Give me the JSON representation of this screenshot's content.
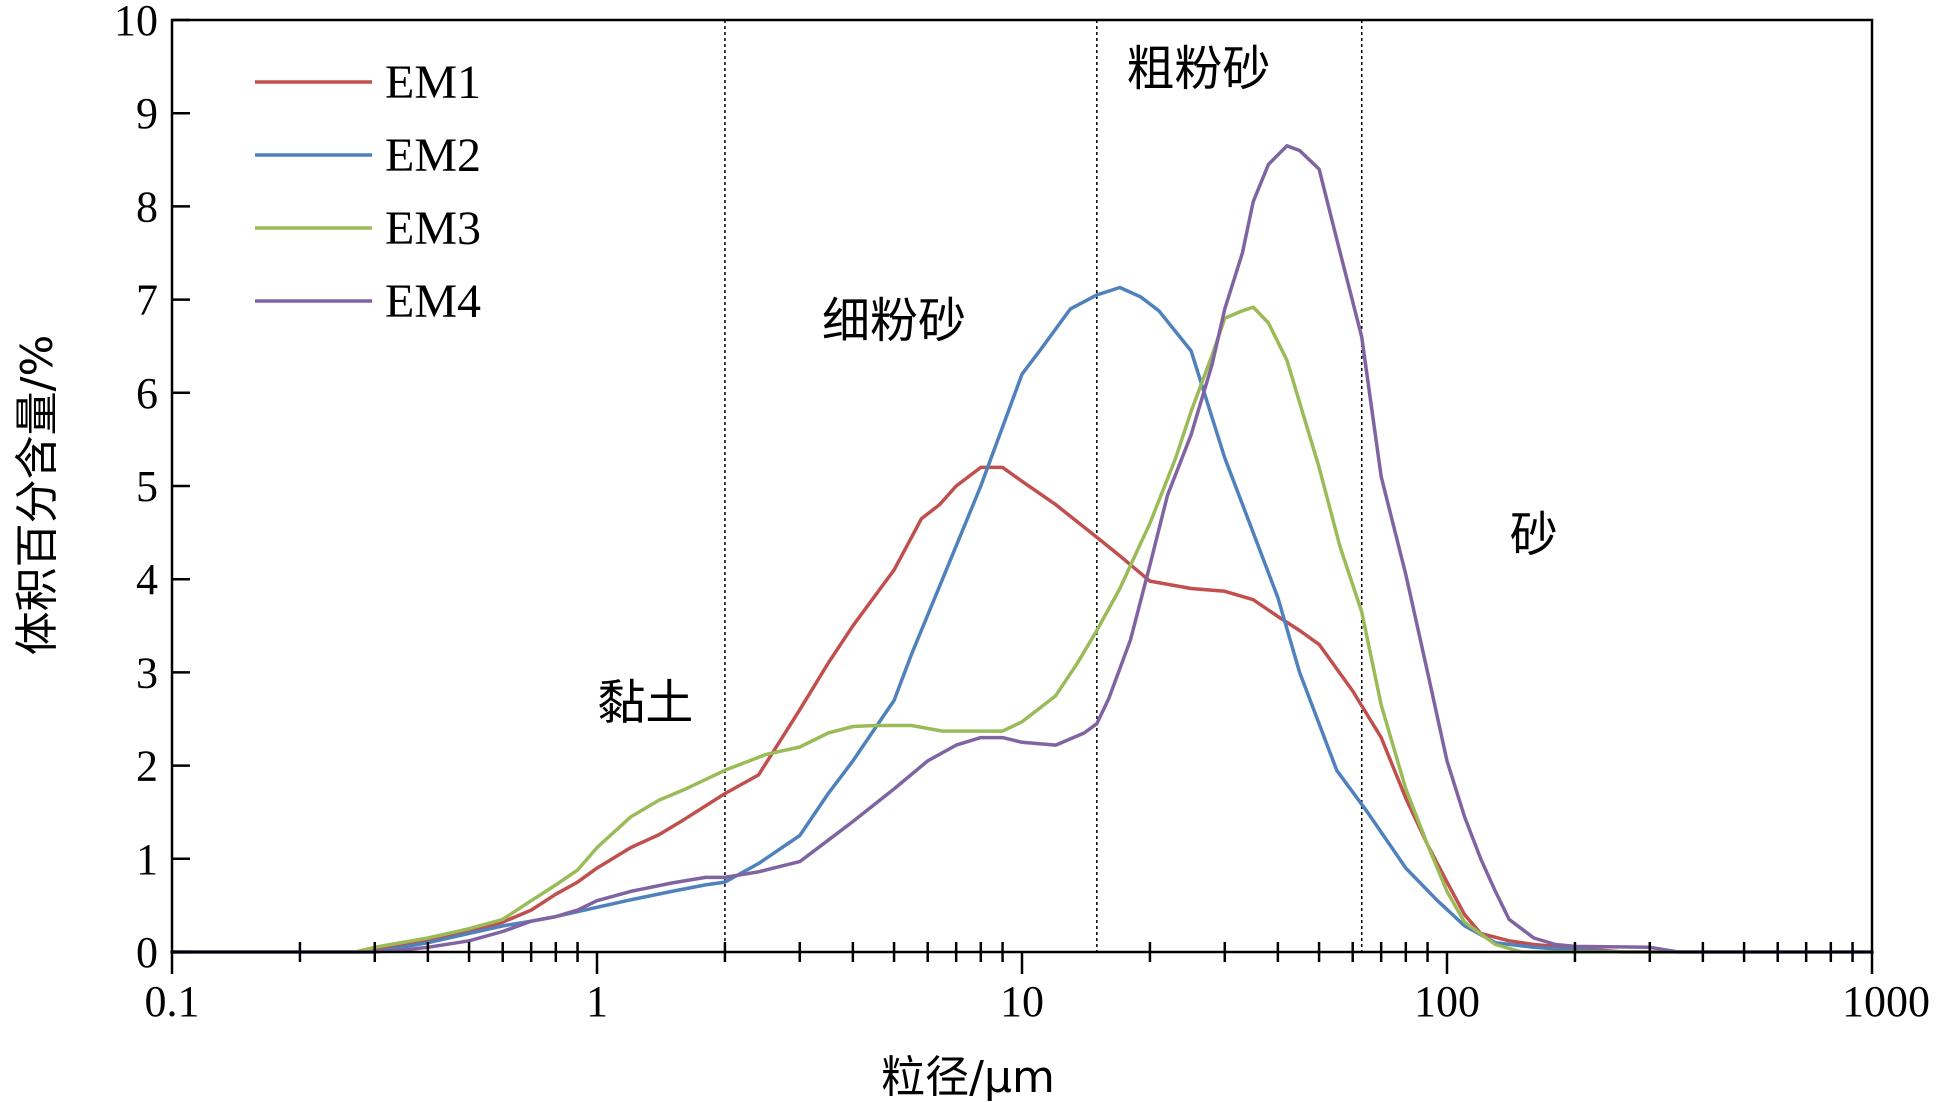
{
  "chart_data": {
    "type": "line",
    "xlabel": "粒径/μm",
    "ylabel": "体积百分含量/%",
    "xscale": "log",
    "xlim": [
      0.1,
      1000
    ],
    "ylim": [
      0,
      10
    ],
    "grid": false,
    "legend_position": "top-left",
    "x_tick_labels": [
      "0.1",
      "1",
      "10",
      "100",
      "1000"
    ],
    "y_tick_labels": [
      "0",
      "1",
      "2",
      "3",
      "4",
      "5",
      "6",
      "7",
      "8",
      "9",
      "10"
    ],
    "boundaries": [
      2,
      15,
      63
    ],
    "annotations": [
      {
        "text": "黏土",
        "x": 1.3,
        "y": 2.5
      },
      {
        "text": "细粉砂",
        "x": 5.0,
        "y": 6.6
      },
      {
        "text": "粗粉砂",
        "x": 26,
        "y": 9.3
      },
      {
        "text": "砂",
        "x": 160,
        "y": 4.3
      }
    ],
    "series": [
      {
        "name": "EM1",
        "color": "#c0504d",
        "points": [
          [
            0.1,
            0
          ],
          [
            0.28,
            0
          ],
          [
            0.3,
            0.03
          ],
          [
            0.4,
            0.12
          ],
          [
            0.5,
            0.22
          ],
          [
            0.6,
            0.32
          ],
          [
            0.7,
            0.45
          ],
          [
            0.8,
            0.62
          ],
          [
            0.9,
            0.75
          ],
          [
            1.0,
            0.9
          ],
          [
            1.2,
            1.12
          ],
          [
            1.4,
            1.26
          ],
          [
            1.6,
            1.42
          ],
          [
            2.0,
            1.7
          ],
          [
            2.4,
            1.9
          ],
          [
            3.0,
            2.6
          ],
          [
            3.5,
            3.1
          ],
          [
            4.0,
            3.5
          ],
          [
            5.0,
            4.1
          ],
          [
            5.8,
            4.65
          ],
          [
            6.4,
            4.8
          ],
          [
            7.0,
            5.0
          ],
          [
            8.0,
            5.2
          ],
          [
            9.0,
            5.2
          ],
          [
            10.0,
            5.05
          ],
          [
            12.0,
            4.8
          ],
          [
            15.0,
            4.45
          ],
          [
            17.0,
            4.25
          ],
          [
            20.0,
            3.98
          ],
          [
            25.0,
            3.9
          ],
          [
            30.0,
            3.87
          ],
          [
            35.0,
            3.78
          ],
          [
            40.0,
            3.6
          ],
          [
            45.0,
            3.45
          ],
          [
            50.0,
            3.3
          ],
          [
            60.0,
            2.8
          ],
          [
            70.0,
            2.3
          ],
          [
            80.0,
            1.65
          ],
          [
            90.0,
            1.15
          ],
          [
            100.0,
            0.75
          ],
          [
            110.0,
            0.4
          ],
          [
            120.0,
            0.2
          ],
          [
            140.0,
            0.12
          ],
          [
            160.0,
            0.08
          ],
          [
            200.0,
            0.04
          ],
          [
            260.0,
            0.0
          ],
          [
            1000,
            0
          ]
        ]
      },
      {
        "name": "EM2",
        "color": "#4f81bd",
        "points": [
          [
            0.1,
            0
          ],
          [
            0.3,
            0
          ],
          [
            0.4,
            0.1
          ],
          [
            0.5,
            0.2
          ],
          [
            0.6,
            0.28
          ],
          [
            0.7,
            0.33
          ],
          [
            0.8,
            0.38
          ],
          [
            1.0,
            0.48
          ],
          [
            1.2,
            0.56
          ],
          [
            1.5,
            0.65
          ],
          [
            1.8,
            0.72
          ],
          [
            2.0,
            0.75
          ],
          [
            2.4,
            0.95
          ],
          [
            3.0,
            1.25
          ],
          [
            3.5,
            1.7
          ],
          [
            4.0,
            2.05
          ],
          [
            5.0,
            2.7
          ],
          [
            5.5,
            3.2
          ],
          [
            6.5,
            4.0
          ],
          [
            8.0,
            5.0
          ],
          [
            10.0,
            6.2
          ],
          [
            11.0,
            6.45
          ],
          [
            13.0,
            6.9
          ],
          [
            15.0,
            7.05
          ],
          [
            17.0,
            7.13
          ],
          [
            19.0,
            7.03
          ],
          [
            21.0,
            6.88
          ],
          [
            25.0,
            6.45
          ],
          [
            30.0,
            5.3
          ],
          [
            35.0,
            4.5
          ],
          [
            40.0,
            3.8
          ],
          [
            45.0,
            3.0
          ],
          [
            50.0,
            2.45
          ],
          [
            55.0,
            1.95
          ],
          [
            65.0,
            1.5
          ],
          [
            80.0,
            0.9
          ],
          [
            95.0,
            0.55
          ],
          [
            110.0,
            0.28
          ],
          [
            130.0,
            0.1
          ],
          [
            160.0,
            0.05
          ],
          [
            200.0,
            0.02
          ],
          [
            260.0,
            0.0
          ],
          [
            1000,
            0
          ]
        ]
      },
      {
        "name": "EM3",
        "color": "#9bbb59",
        "points": [
          [
            0.1,
            0
          ],
          [
            0.27,
            0
          ],
          [
            0.3,
            0.05
          ],
          [
            0.4,
            0.15
          ],
          [
            0.5,
            0.25
          ],
          [
            0.6,
            0.35
          ],
          [
            0.7,
            0.55
          ],
          [
            0.8,
            0.72
          ],
          [
            0.9,
            0.88
          ],
          [
            1.0,
            1.12
          ],
          [
            1.2,
            1.45
          ],
          [
            1.4,
            1.63
          ],
          [
            1.6,
            1.74
          ],
          [
            2.0,
            1.95
          ],
          [
            2.5,
            2.12
          ],
          [
            3.0,
            2.2
          ],
          [
            3.5,
            2.35
          ],
          [
            4.0,
            2.42
          ],
          [
            4.5,
            2.43
          ],
          [
            5.5,
            2.43
          ],
          [
            6.5,
            2.37
          ],
          [
            8.0,
            2.37
          ],
          [
            9.0,
            2.37
          ],
          [
            10.0,
            2.47
          ],
          [
            12.0,
            2.75
          ],
          [
            13.5,
            3.1
          ],
          [
            15.0,
            3.45
          ],
          [
            17.0,
            3.9
          ],
          [
            20.0,
            4.6
          ],
          [
            23.0,
            5.3
          ],
          [
            25.0,
            5.8
          ],
          [
            28.0,
            6.4
          ],
          [
            30.0,
            6.8
          ],
          [
            33.0,
            6.88
          ],
          [
            35.0,
            6.92
          ],
          [
            38.0,
            6.75
          ],
          [
            42.0,
            6.35
          ],
          [
            46.0,
            5.75
          ],
          [
            50.0,
            5.2
          ],
          [
            56.0,
            4.35
          ],
          [
            63.0,
            3.65
          ],
          [
            70.0,
            2.65
          ],
          [
            80.0,
            1.75
          ],
          [
            90.0,
            1.15
          ],
          [
            100.0,
            0.65
          ],
          [
            110.0,
            0.32
          ],
          [
            130.0,
            0.08
          ],
          [
            150.0,
            0.0
          ],
          [
            1000,
            0
          ]
        ]
      },
      {
        "name": "EM4",
        "color": "#8064a2",
        "points": [
          [
            0.1,
            0
          ],
          [
            0.3,
            0
          ],
          [
            0.35,
            0.02
          ],
          [
            0.4,
            0.05
          ],
          [
            0.5,
            0.12
          ],
          [
            0.6,
            0.22
          ],
          [
            0.7,
            0.33
          ],
          [
            0.8,
            0.38
          ],
          [
            0.9,
            0.45
          ],
          [
            1.0,
            0.55
          ],
          [
            1.2,
            0.65
          ],
          [
            1.5,
            0.74
          ],
          [
            1.8,
            0.8
          ],
          [
            2.0,
            0.8
          ],
          [
            2.4,
            0.86
          ],
          [
            3.0,
            0.97
          ],
          [
            3.5,
            1.2
          ],
          [
            4.0,
            1.4
          ],
          [
            5.0,
            1.75
          ],
          [
            6.0,
            2.05
          ],
          [
            7.0,
            2.22
          ],
          [
            8.0,
            2.3
          ],
          [
            9.0,
            2.3
          ],
          [
            10.0,
            2.25
          ],
          [
            12.0,
            2.22
          ],
          [
            14.0,
            2.35
          ],
          [
            15.0,
            2.45
          ],
          [
            16.0,
            2.72
          ],
          [
            18.0,
            3.35
          ],
          [
            20.0,
            4.15
          ],
          [
            22.0,
            4.9
          ],
          [
            25.0,
            5.55
          ],
          [
            28.0,
            6.3
          ],
          [
            30.0,
            6.9
          ],
          [
            33.0,
            7.5
          ],
          [
            35.0,
            8.05
          ],
          [
            38.0,
            8.45
          ],
          [
            42.0,
            8.65
          ],
          [
            45.0,
            8.6
          ],
          [
            50.0,
            8.4
          ],
          [
            55.0,
            7.65
          ],
          [
            63.0,
            6.6
          ],
          [
            70.0,
            5.1
          ],
          [
            80.0,
            4.05
          ],
          [
            90.0,
            3.0
          ],
          [
            100.0,
            2.05
          ],
          [
            110.0,
            1.45
          ],
          [
            120.0,
            1.0
          ],
          [
            130.0,
            0.65
          ],
          [
            140.0,
            0.35
          ],
          [
            160.0,
            0.15
          ],
          [
            180.0,
            0.08
          ],
          [
            200.0,
            0.06
          ],
          [
            300.0,
            0.05
          ],
          [
            350.0,
            0.0
          ],
          [
            1000,
            0
          ]
        ]
      }
    ]
  }
}
